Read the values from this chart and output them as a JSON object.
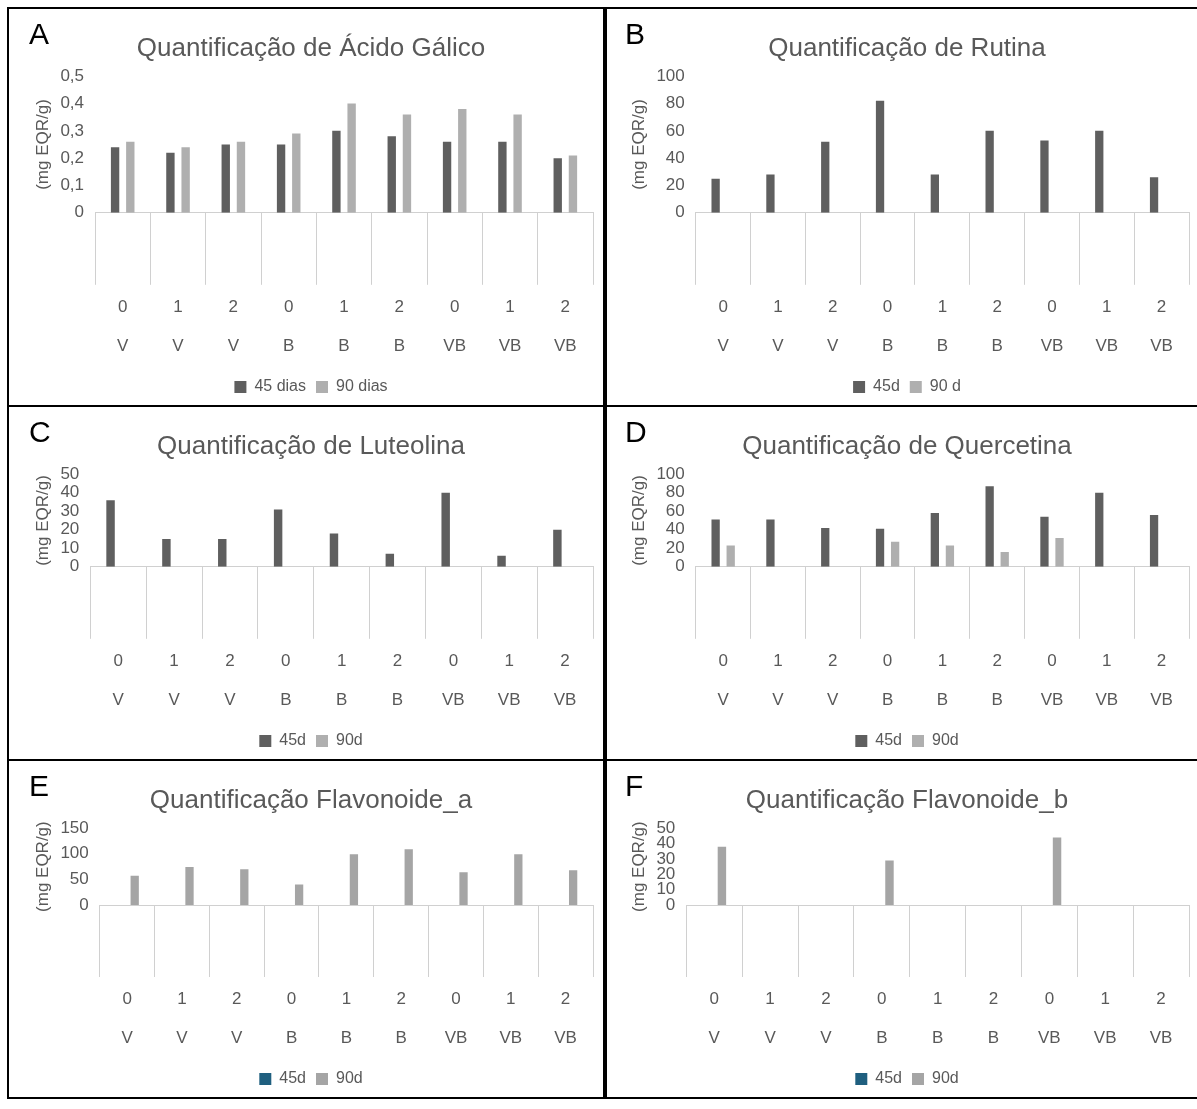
{
  "chart_data": [
    {
      "type": "bar",
      "title": "Quantificação de Ácido Gálico",
      "ylabel": "(mg EQR/g)",
      "annotations": [
        "A"
      ],
      "legend": "bottom",
      "categories": [
        [
          "0",
          "V"
        ],
        [
          "1",
          "V"
        ],
        [
          "2",
          "V"
        ],
        [
          "0",
          "B"
        ],
        [
          "1",
          "B"
        ],
        [
          "2",
          "B"
        ],
        [
          "0",
          "VB"
        ],
        [
          "1",
          "VB"
        ],
        [
          "2",
          "VB"
        ]
      ],
      "ylim": [
        0,
        0.5
      ],
      "yticks": [
        0,
        {
          "value": 0.1,
          "label": "0,1"
        },
        {
          "value": 0.2,
          "label": "0,2"
        },
        {
          "value": 0.3,
          "label": "0,3"
        },
        {
          "value": 0.4,
          "label": "0,4"
        },
        {
          "value": 0.5,
          "label": "0,5"
        }
      ],
      "series": [
        {
          "name": "45 dias",
          "color": "#5f5f5f",
          "values": [
            0.24,
            0.22,
            0.25,
            0.25,
            0.3,
            0.28,
            0.26,
            0.26,
            0.2
          ]
        },
        {
          "name": "90 dias",
          "color": "#afafaf",
          "values": [
            0.26,
            0.24,
            0.26,
            0.29,
            0.4,
            0.36,
            0.38,
            0.36,
            0.21
          ]
        }
      ]
    },
    {
      "type": "bar",
      "title": "Quantificação de Rutina",
      "ylabel": "(mg EQR/g)",
      "annotations": [
        "B"
      ],
      "legend": "bottom",
      "categories": [
        [
          "0",
          "V"
        ],
        [
          "1",
          "V"
        ],
        [
          "2",
          "V"
        ],
        [
          "0",
          "B"
        ],
        [
          "1",
          "B"
        ],
        [
          "2",
          "B"
        ],
        [
          "0",
          "VB"
        ],
        [
          "1",
          "VB"
        ],
        [
          "2",
          "VB"
        ]
      ],
      "ylim": [
        0,
        100
      ],
      "yticks": [
        0,
        20,
        40,
        60,
        80,
        100
      ],
      "series": [
        {
          "name": "45d",
          "color": "#5f5f5f",
          "values": [
            25,
            28,
            52,
            82,
            28,
            60,
            53,
            60,
            26
          ]
        },
        {
          "name": "90 d",
          "color": "#afafaf",
          "values": [
            null,
            null,
            null,
            null,
            null,
            null,
            null,
            null,
            null
          ]
        }
      ]
    },
    {
      "type": "bar",
      "title": "Quantificação de Luteolina",
      "ylabel": "(mg EQR/g)",
      "annotations": [
        "C"
      ],
      "legend": "bottom",
      "categories": [
        [
          "0",
          "V"
        ],
        [
          "1",
          "V"
        ],
        [
          "2",
          "V"
        ],
        [
          "0",
          "B"
        ],
        [
          "1",
          "B"
        ],
        [
          "2",
          "B"
        ],
        [
          "0",
          "VB"
        ],
        [
          "1",
          "VB"
        ],
        [
          "2",
          "VB"
        ]
      ],
      "ylim": [
        0,
        50
      ],
      "yticks": [
        0,
        10,
        20,
        30,
        40,
        50
      ],
      "series": [
        {
          "name": "45d",
          "color": "#5f5f5f",
          "values": [
            36,
            15,
            15,
            31,
            18,
            7,
            40,
            6,
            20
          ]
        },
        {
          "name": "90d",
          "color": "#afafaf",
          "values": [
            null,
            null,
            null,
            null,
            null,
            null,
            null,
            null,
            null
          ]
        }
      ]
    },
    {
      "type": "bar",
      "title": "Quantificação de Quercetina",
      "ylabel": "(mg EQR/g)",
      "annotations": [
        "D"
      ],
      "legend": "bottom",
      "categories": [
        [
          "0",
          "V"
        ],
        [
          "1",
          "V"
        ],
        [
          "2",
          "V"
        ],
        [
          "0",
          "B"
        ],
        [
          "1",
          "B"
        ],
        [
          "2",
          "B"
        ],
        [
          "0",
          "VB"
        ],
        [
          "1",
          "VB"
        ],
        [
          "2",
          "VB"
        ]
      ],
      "ylim": [
        0,
        100
      ],
      "yticks": [
        0,
        20,
        40,
        60,
        80,
        100
      ],
      "series": [
        {
          "name": "45d",
          "color": "#5f5f5f",
          "values": [
            51,
            51,
            42,
            41,
            58,
            87,
            54,
            80,
            56
          ]
        },
        {
          "name": "90d",
          "color": "#afafaf",
          "values": [
            23,
            null,
            null,
            27,
            23,
            16,
            31,
            null,
            null
          ]
        }
      ]
    },
    {
      "type": "bar",
      "title": "Quantificação Flavonoide_a",
      "ylabel": "(mg EQR/g)",
      "annotations": [
        "E"
      ],
      "legend": "bottom",
      "categories": [
        [
          "0",
          "V"
        ],
        [
          "1",
          "V"
        ],
        [
          "2",
          "V"
        ],
        [
          "0",
          "B"
        ],
        [
          "1",
          "B"
        ],
        [
          "2",
          "B"
        ],
        [
          "0",
          "VB"
        ],
        [
          "1",
          "VB"
        ],
        [
          "2",
          "VB"
        ]
      ],
      "ylim": [
        0,
        150
      ],
      "yticks": [
        0,
        50,
        100,
        150
      ],
      "series": [
        {
          "name": "45d",
          "color": "#1f5f7f",
          "values": [
            null,
            null,
            null,
            null,
            null,
            null,
            null,
            null,
            null
          ]
        },
        {
          "name": "90d",
          "color": "#a5a5a5",
          "values": [
            57,
            74,
            70,
            40,
            99,
            109,
            64,
            99,
            68
          ]
        }
      ]
    },
    {
      "type": "bar",
      "title": "Quantificação Flavonoide_b",
      "ylabel": "(mg EQR/g)",
      "annotations": [
        "F"
      ],
      "legend": "bottom",
      "categories": [
        [
          "0",
          "V"
        ],
        [
          "1",
          "V"
        ],
        [
          "2",
          "V"
        ],
        [
          "0",
          "B"
        ],
        [
          "1",
          "B"
        ],
        [
          "2",
          "B"
        ],
        [
          "0",
          "VB"
        ],
        [
          "1",
          "VB"
        ],
        [
          "2",
          "VB"
        ]
      ],
      "ylim": [
        0,
        50
      ],
      "yticks": [
        0,
        10,
        20,
        30,
        40,
        50
      ],
      "series": [
        {
          "name": "45d",
          "color": "#1f5f7f",
          "values": [
            null,
            null,
            null,
            null,
            null,
            null,
            null,
            null,
            null
          ]
        },
        {
          "name": "90d",
          "color": "#a5a5a5",
          "values": [
            38,
            null,
            null,
            29,
            null,
            null,
            44,
            null,
            null
          ]
        }
      ]
    }
  ]
}
